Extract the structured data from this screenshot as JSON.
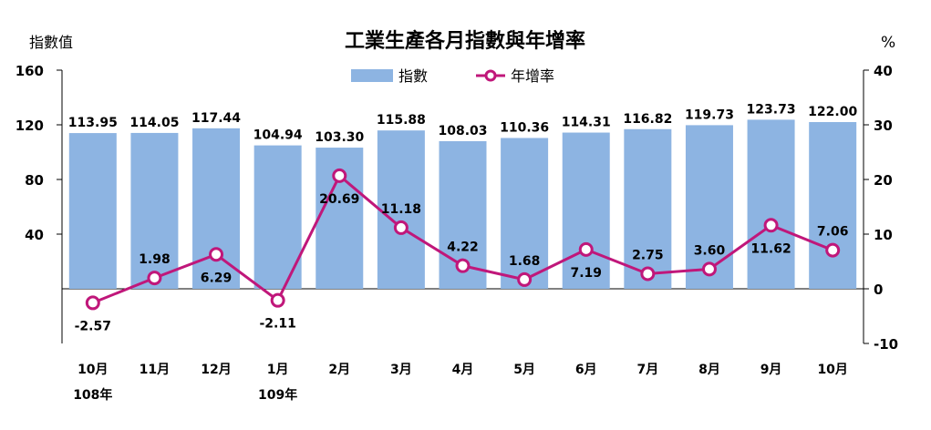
{
  "chart_data": {
    "type": "bar",
    "title": "工業生產各月指數與年增率",
    "left_axis_label": "指數值",
    "right_axis_label": "%",
    "categories": [
      "10月",
      "11月",
      "12月",
      "1月",
      "2月",
      "3月",
      "4月",
      "5月",
      "6月",
      "7月",
      "8月",
      "9月",
      "10月"
    ],
    "year_labels": [
      "108年",
      "",
      "",
      "109年",
      "",
      "",
      "",
      "",
      "",
      "",
      "",
      "",
      ""
    ],
    "series": [
      {
        "name": "指數",
        "type": "bar",
        "axis": "left",
        "color": "#8db4e2",
        "values": [
          113.95,
          114.05,
          117.44,
          104.94,
          103.3,
          115.88,
          108.03,
          110.36,
          114.31,
          116.82,
          119.73,
          123.73,
          122.0
        ],
        "labels": [
          "113.95",
          "114.05",
          "117.44",
          "104.94",
          "103.30",
          "115.88",
          "108.03",
          "110.36",
          "114.31",
          "116.82",
          "119.73",
          "123.73",
          "122.00"
        ]
      },
      {
        "name": "年增率",
        "type": "line",
        "axis": "right",
        "color": "#c0177a",
        "values": [
          -2.57,
          1.98,
          6.29,
          -2.11,
          20.69,
          11.18,
          4.22,
          1.68,
          7.19,
          2.75,
          3.6,
          11.62,
          7.06
        ],
        "labels": [
          "-2.57",
          "1.98",
          "6.29",
          "-2.11",
          "20.69",
          "11.18",
          "4.22",
          "1.68",
          "7.19",
          "2.75",
          "3.60",
          "11.62",
          "7.06"
        ]
      }
    ],
    "left_axis": {
      "min": -40,
      "max": 160,
      "ticks": [
        40,
        80,
        120,
        160
      ]
    },
    "right_axis": {
      "min": -10,
      "max": 40,
      "ticks": [
        -10,
        0,
        10,
        20,
        30,
        40
      ]
    },
    "legend": {
      "position": "top-center"
    },
    "grid": false
  }
}
